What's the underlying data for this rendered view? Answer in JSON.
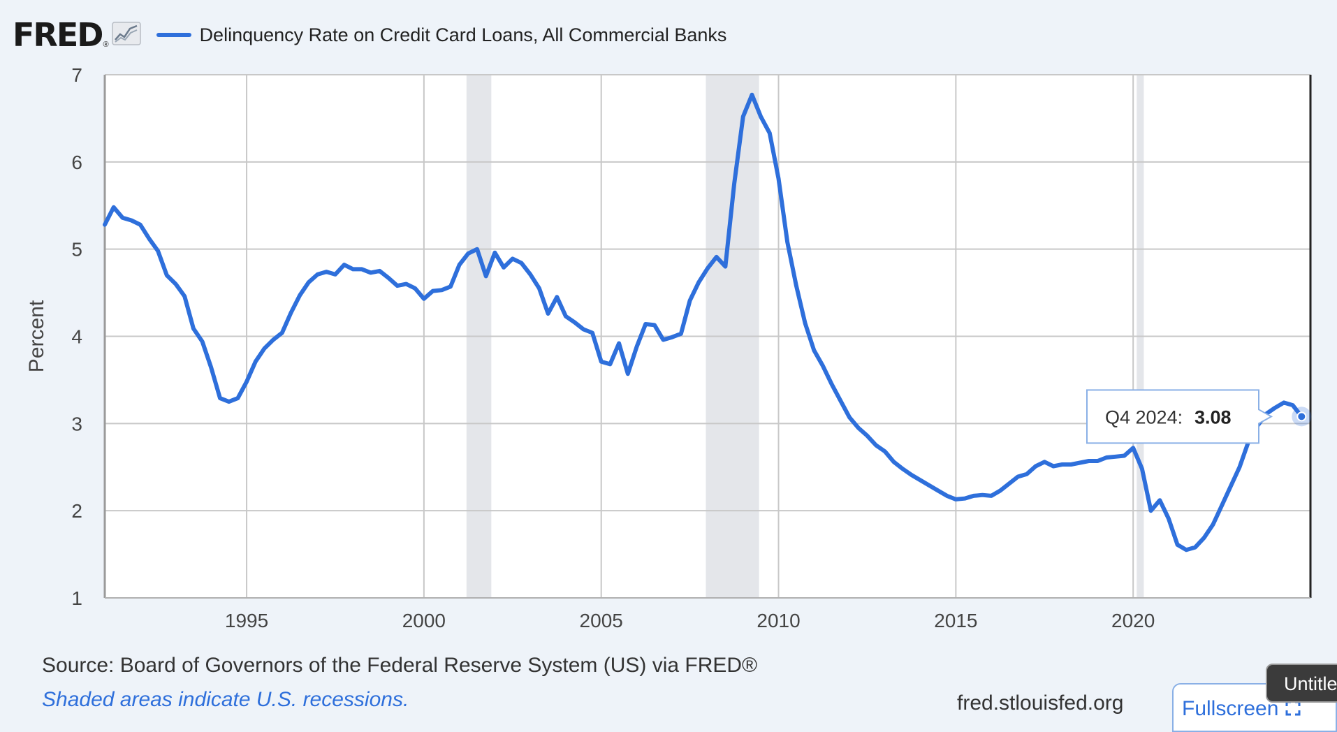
{
  "header": {
    "logo_text": "FRED",
    "logo_mark": "®",
    "logo_icon": "trend-chart-icon",
    "series_label": "Delinquency Rate on Credit Card Loans, All Commercial Banks"
  },
  "colors": {
    "series": "#2e6fdb",
    "recession": "#e4e6ea",
    "grid": "#c8c8c8",
    "background": "#eef3f9"
  },
  "chart_data": {
    "type": "line",
    "title": "Delinquency Rate on Credit Card Loans, All Commercial Banks",
    "xlabel": "",
    "ylabel": "Percent",
    "ylim": [
      1,
      7
    ],
    "xlim": [
      1991.0,
      2025.0
    ],
    "grid": true,
    "legend": "top-left",
    "x_ticks": [
      1995,
      2000,
      2005,
      2010,
      2015,
      2020
    ],
    "y_ticks": [
      1,
      2,
      3,
      4,
      5,
      6,
      7
    ],
    "recessions": [
      [
        2001.2,
        2001.9
      ],
      [
        2007.95,
        2009.45
      ],
      [
        2020.1,
        2020.3
      ]
    ],
    "series": [
      {
        "name": "Delinquency Rate on Credit Card Loans, All Commercial Banks",
        "x": [
          1991.0,
          1991.25,
          1991.5,
          1991.75,
          1992.0,
          1992.25,
          1992.5,
          1992.75,
          1993.0,
          1993.25,
          1993.5,
          1993.75,
          1994.0,
          1994.25,
          1994.5,
          1994.75,
          1995.0,
          1995.25,
          1995.5,
          1995.75,
          1996.0,
          1996.25,
          1996.5,
          1996.75,
          1997.0,
          1997.25,
          1997.5,
          1997.75,
          1998.0,
          1998.25,
          1998.5,
          1998.75,
          1999.0,
          1999.25,
          1999.5,
          1999.75,
          2000.0,
          2000.25,
          2000.5,
          2000.75,
          2001.0,
          2001.25,
          2001.5,
          2001.75,
          2002.0,
          2002.25,
          2002.5,
          2002.75,
          2003.0,
          2003.25,
          2003.5,
          2003.75,
          2004.0,
          2004.25,
          2004.5,
          2004.75,
          2005.0,
          2005.25,
          2005.5,
          2005.75,
          2006.0,
          2006.25,
          2006.5,
          2006.75,
          2007.0,
          2007.25,
          2007.5,
          2007.75,
          2008.0,
          2008.25,
          2008.5,
          2008.75,
          2009.0,
          2009.25,
          2009.5,
          2009.75,
          2010.0,
          2010.25,
          2010.5,
          2010.75,
          2011.0,
          2011.25,
          2011.5,
          2011.75,
          2012.0,
          2012.25,
          2012.5,
          2012.75,
          2013.0,
          2013.25,
          2013.5,
          2013.75,
          2014.0,
          2014.25,
          2014.5,
          2014.75,
          2015.0,
          2015.25,
          2015.5,
          2015.75,
          2016.0,
          2016.25,
          2016.5,
          2016.75,
          2017.0,
          2017.25,
          2017.5,
          2017.75,
          2018.0,
          2018.25,
          2018.5,
          2018.75,
          2019.0,
          2019.25,
          2019.5,
          2019.75,
          2020.0,
          2020.25,
          2020.5,
          2020.75,
          2021.0,
          2021.25,
          2021.5,
          2021.75,
          2022.0,
          2022.25,
          2022.5,
          2022.75,
          2023.0,
          2023.25,
          2023.5,
          2023.75,
          2024.0,
          2024.25,
          2024.5,
          2024.75
        ],
        "values": [
          5.28,
          5.48,
          5.36,
          5.33,
          5.28,
          5.12,
          4.98,
          4.7,
          4.6,
          4.46,
          4.09,
          3.94,
          3.64,
          3.29,
          3.25,
          3.29,
          3.48,
          3.71,
          3.86,
          3.96,
          4.04,
          4.27,
          4.47,
          4.62,
          4.71,
          4.74,
          4.71,
          4.82,
          4.77,
          4.77,
          4.73,
          4.75,
          4.67,
          4.58,
          4.6,
          4.55,
          4.43,
          4.52,
          4.53,
          4.57,
          4.82,
          4.95,
          5.0,
          4.69,
          4.96,
          4.79,
          4.89,
          4.84,
          4.71,
          4.55,
          4.26,
          4.45,
          4.23,
          4.16,
          4.08,
          4.04,
          3.71,
          3.68,
          3.92,
          3.57,
          3.88,
          4.14,
          4.13,
          3.96,
          3.99,
          4.03,
          4.41,
          4.62,
          4.78,
          4.91,
          4.8,
          5.75,
          6.52,
          6.77,
          6.52,
          6.33,
          5.81,
          5.08,
          4.58,
          4.15,
          3.84,
          3.66,
          3.45,
          3.26,
          3.07,
          2.95,
          2.86,
          2.75,
          2.68,
          2.56,
          2.48,
          2.41,
          2.35,
          2.29,
          2.23,
          2.17,
          2.13,
          2.14,
          2.17,
          2.18,
          2.17,
          2.23,
          2.31,
          2.39,
          2.42,
          2.51,
          2.56,
          2.51,
          2.53,
          2.53,
          2.55,
          2.57,
          2.57,
          2.61,
          2.62,
          2.63,
          2.72,
          2.48,
          2.0,
          2.12,
          1.91,
          1.61,
          1.55,
          1.58,
          1.69,
          1.84,
          2.06,
          2.28,
          2.5,
          2.79,
          2.97,
          3.11,
          3.18,
          3.24,
          3.21,
          3.08
        ]
      }
    ],
    "tooltip": {
      "label": "Q4 2024:",
      "value": "3.08"
    }
  },
  "footer": {
    "source": "Source: Board of Governors of the Federal Reserve System (US) via FRED®",
    "note": "Shaded areas indicate U.S. recessions.",
    "link": "fred.stlouisfed.org",
    "fullscreen_label": "Fullscreen",
    "fullscreen_icon": "expand-icon",
    "tab_tooltip": "Untitled"
  }
}
